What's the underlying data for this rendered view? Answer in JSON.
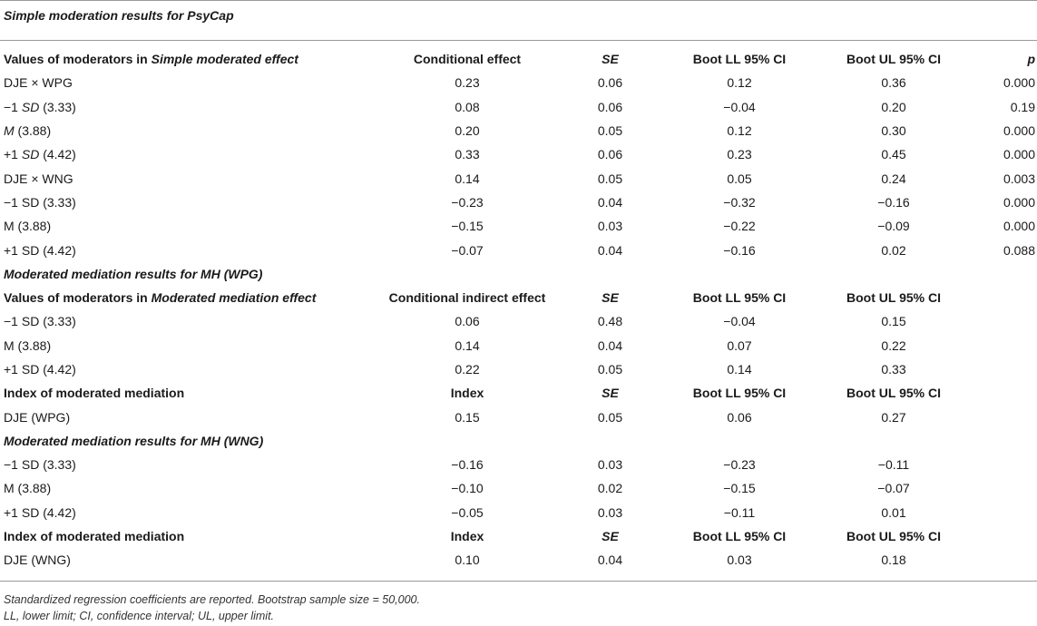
{
  "title": "Simple moderation results for PsyCap",
  "rows": [
    {
      "kind": "hdr",
      "cells": [
        [
          "Values of moderators in ",
          {
            "i": "Simple moderated effect"
          }
        ],
        "Conditional effect",
        {
          "i": "SE"
        },
        "Boot LL 95% CI",
        "Boot UL 95% CI",
        {
          "i": "p"
        }
      ]
    },
    {
      "kind": "data",
      "cells": [
        "DJE × WPG",
        "0.23",
        "0.06",
        "0.12",
        "0.36",
        "0.000"
      ]
    },
    {
      "kind": "data",
      "cells": [
        [
          "−1 ",
          {
            "i": "SD"
          },
          " (3.33)"
        ],
        "0.08",
        "0.06",
        "−0.04",
        "0.20",
        "0.19"
      ]
    },
    {
      "kind": "data",
      "cells": [
        [
          {
            "i": "M"
          },
          " (3.88)"
        ],
        "0.20",
        "0.05",
        "0.12",
        "0.30",
        "0.000"
      ]
    },
    {
      "kind": "data",
      "cells": [
        [
          "+1 ",
          {
            "i": "SD"
          },
          " (4.42)"
        ],
        "0.33",
        "0.06",
        "0.23",
        "0.45",
        "0.000"
      ]
    },
    {
      "kind": "data",
      "cells": [
        "DJE × WNG",
        "0.14",
        "0.05",
        "0.05",
        "0.24",
        "0.003"
      ]
    },
    {
      "kind": "data",
      "cells": [
        "−1 SD (3.33)",
        "−0.23",
        "0.04",
        "−0.32",
        "−0.16",
        "0.000"
      ]
    },
    {
      "kind": "data",
      "cells": [
        "M (3.88)",
        "−0.15",
        "0.03",
        "−0.22",
        "−0.09",
        "0.000"
      ]
    },
    {
      "kind": "data",
      "cells": [
        "+1 SD (4.42)",
        "−0.07",
        "0.04",
        "−0.16",
        "0.02",
        "0.088"
      ]
    },
    {
      "kind": "section",
      "cells": [
        "Moderated mediation results for MH (WPG)",
        "",
        "",
        "",
        "",
        ""
      ]
    },
    {
      "kind": "hdr",
      "cells": [
        [
          "Values of moderators in ",
          {
            "i": "Moderated mediation effect"
          }
        ],
        "Conditional indirect effect",
        {
          "i": "SE"
        },
        "Boot LL 95% CI",
        "Boot UL 95% CI",
        ""
      ]
    },
    {
      "kind": "data",
      "cells": [
        "−1 SD (3.33)",
        "0.06",
        "0.48",
        "−0.04",
        "0.15",
        ""
      ]
    },
    {
      "kind": "data",
      "cells": [
        "M (3.88)",
        "0.14",
        "0.04",
        "0.07",
        "0.22",
        ""
      ]
    },
    {
      "kind": "data",
      "cells": [
        "+1 SD (4.42)",
        "0.22",
        "0.05",
        "0.14",
        "0.33",
        ""
      ]
    },
    {
      "kind": "hdr",
      "cells": [
        "Index of moderated mediation",
        "Index",
        {
          "i": "SE"
        },
        "Boot LL 95% CI",
        "Boot UL 95% CI",
        ""
      ]
    },
    {
      "kind": "data",
      "cells": [
        "DJE (WPG)",
        "0.15",
        "0.05",
        "0.06",
        "0.27",
        ""
      ]
    },
    {
      "kind": "section",
      "cells": [
        "Moderated mediation results for MH (WNG)",
        "",
        "",
        "",
        "",
        ""
      ]
    },
    {
      "kind": "data",
      "cells": [
        "−1 SD (3.33)",
        "−0.16",
        "0.03",
        "−0.23",
        "−0.11",
        ""
      ]
    },
    {
      "kind": "data",
      "cells": [
        "M (3.88)",
        "−0.10",
        "0.02",
        "−0.15",
        "−0.07",
        ""
      ]
    },
    {
      "kind": "data",
      "cells": [
        "+1 SD (4.42)",
        "−0.05",
        "0.03",
        "−0.11",
        "0.01",
        ""
      ]
    },
    {
      "kind": "hdr",
      "cells": [
        "Index of moderated mediation",
        "Index",
        {
          "i": "SE"
        },
        "Boot LL 95% CI",
        "Boot UL 95% CI",
        ""
      ]
    },
    {
      "kind": "data",
      "cells": [
        "DJE (WNG)",
        "0.10",
        "0.04",
        "0.03",
        "0.18",
        ""
      ]
    }
  ],
  "footnotes": [
    "Standardized regression coefficients are reported. Bootstrap sample size = 50,000.",
    "LL, lower limit; CI, confidence interval; UL, upper limit."
  ]
}
